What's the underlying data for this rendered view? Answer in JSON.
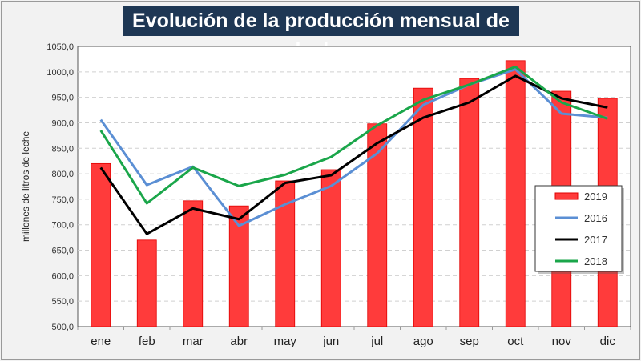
{
  "chart_data": {
    "type": "bar+line",
    "title": "Evolución de la producción mensual de leche",
    "xlabel": "",
    "ylabel": "millones de litros de leche",
    "ylim": [
      500,
      1050
    ],
    "yticks": [
      "500,0",
      "550,0",
      "600,0",
      "650,0",
      "700,0",
      "750,0",
      "800,0",
      "850,0",
      "900,0",
      "950,0",
      "1000,0",
      "1050,0"
    ],
    "grid": true,
    "legend_position": "right",
    "categories": [
      "ene",
      "feb",
      "mar",
      "abr",
      "may",
      "jun",
      "jul",
      "ago",
      "sep",
      "oct",
      "nov",
      "dic"
    ],
    "series": [
      {
        "name": "2019",
        "kind": "bar",
        "color": "#ff3b3b",
        "values": [
          820,
          670,
          747,
          737,
          786,
          808,
          898,
          968,
          987,
          1022,
          962,
          948
        ]
      },
      {
        "name": "2016",
        "kind": "line",
        "color": "#5b8fd4",
        "values": [
          906,
          778,
          814,
          698,
          740,
          776,
          840,
          935,
          975,
          1005,
          918,
          910
        ]
      },
      {
        "name": "2017",
        "kind": "line",
        "color": "#000000",
        "values": [
          812,
          682,
          732,
          711,
          782,
          797,
          860,
          910,
          940,
          992,
          948,
          930
        ]
      },
      {
        "name": "2018",
        "kind": "line",
        "color": "#1aa64a",
        "values": [
          885,
          742,
          812,
          776,
          798,
          833,
          895,
          945,
          975,
          1010,
          940,
          908
        ]
      }
    ]
  }
}
